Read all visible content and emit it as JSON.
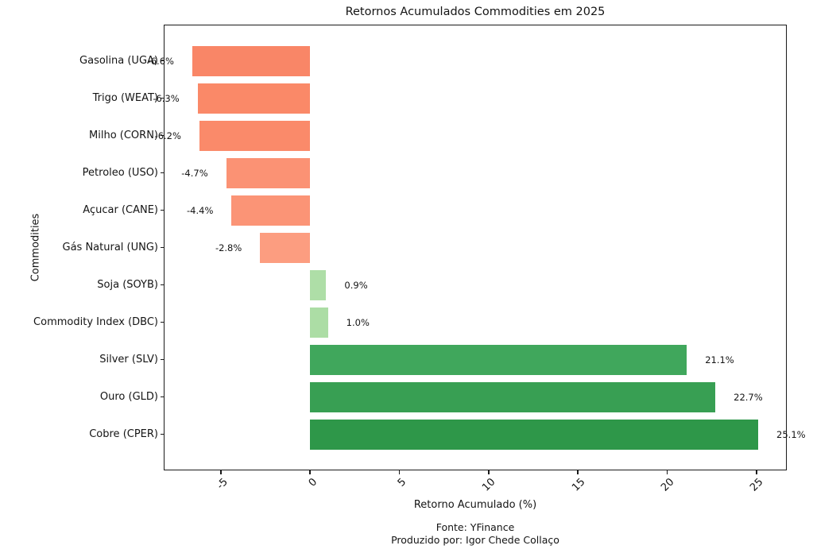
{
  "figure": {
    "title": "Retornos Acumulados Commodities em 2025",
    "xlabel": "Retorno Acumulado (%)",
    "ylabel": "Commodities",
    "footer_line1": "Fonte: YFinance",
    "footer_line2": "Produzido por: Igor Chede Collaço"
  },
  "chart_data": {
    "type": "bar",
    "orientation": "horizontal",
    "title": "Retornos Acumulados Commodities em 2025",
    "xlabel": "Retorno Acumulado (%)",
    "ylabel": "Commodities",
    "xlim": [
      -8.2,
      26.7
    ],
    "x_ticks": [
      -5,
      0,
      5,
      10,
      15,
      20,
      25
    ],
    "x_tick_labels": [
      "-5",
      "0",
      "5",
      "10",
      "15",
      "20",
      "25"
    ],
    "grid": false,
    "legend": false,
    "categories_top_to_bottom": true,
    "categories": [
      "Gasolina (UGA)",
      "Trigo (WEAT)",
      "Milho (CORN)",
      "Petroleo (USO)",
      "Açucar (CANE)",
      "Gás Natural (UNG)",
      "Soja (SOYB)",
      "Commodity Index (DBC)",
      "Silver (SLV)",
      "Ouro (GLD)",
      "Cobre (CPER)"
    ],
    "values": [
      -6.6,
      -6.3,
      -6.2,
      -4.7,
      -4.4,
      -2.8,
      0.9,
      1.0,
      21.1,
      22.7,
      25.1
    ],
    "value_labels": [
      "-6.6%",
      "-6.3%",
      "-6.2%",
      "-4.7%",
      "-4.4%",
      "-2.8%",
      "0.9%",
      "1.0%",
      "21.1%",
      "22.7%",
      "25.1%"
    ],
    "bar_colors": [
      "#F98667",
      "#FA8968",
      "#FA8A6A",
      "#FB9274",
      "#FB9476",
      "#FC9D80",
      "#AEDEA7",
      "#ACDDA5",
      "#40A75C",
      "#389F53",
      "#2E9749"
    ],
    "negative_color_family": "salmon",
    "positive_color_family": "green",
    "source_note": [
      "Fonte: YFinance",
      "Produzido por: Igor Chede Collaço"
    ]
  }
}
